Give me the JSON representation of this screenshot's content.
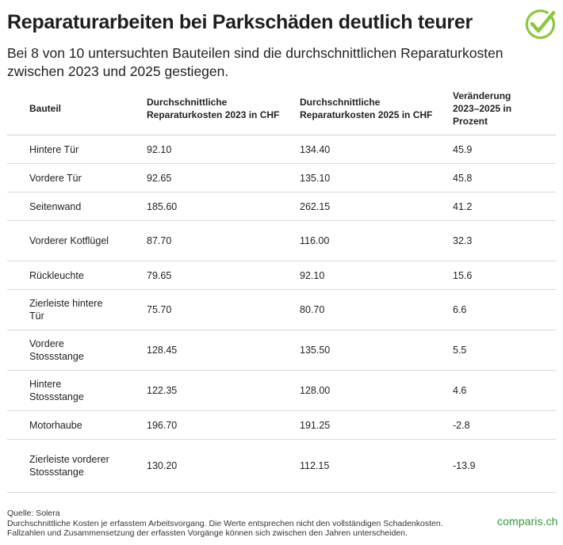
{
  "title": "Reparaturarbeiten bei Parkschäden deutlich teurer",
  "subtitle": "Bei 8 von 10 untersuchten Bauteilen sind die durchschnittlichen Reparaturkosten zwischen 2023 und 2025 gestiegen.",
  "colors": {
    "brand_green": "#2e9b3a",
    "check_green": "#8cc63f"
  },
  "logo": {
    "icon": "checkmark-circle-icon"
  },
  "table": {
    "headers": {
      "part": "Bauteil",
      "cost2023": "Durchschnittliche Reparaturkosten 2023 in CHF",
      "cost2025": "Durchschnittliche Reparaturkosten 2025 in CHF",
      "change": "Veränderung 2023–2025 in Prozent"
    },
    "rows": [
      {
        "part": "Hintere Tür",
        "cost2023": "92.10",
        "cost2025": "134.40",
        "change": "45.9"
      },
      {
        "part": "Vordere Tür",
        "cost2023": "92.65",
        "cost2025": "135.10",
        "change": "45.8"
      },
      {
        "part": "Seitenwand",
        "cost2023": "185.60",
        "cost2025": "262.15",
        "change": "41.2"
      },
      {
        "part": "Vorderer Kotflügel",
        "cost2023": "87.70",
        "cost2025": "116.00",
        "change": "32.3"
      },
      {
        "part": "Rückleuchte",
        "cost2023": "79.65",
        "cost2025": "92.10",
        "change": "15.6"
      },
      {
        "part": "Zierleiste hintere Tür",
        "cost2023": "75.70",
        "cost2025": "80.70",
        "change": "6.6"
      },
      {
        "part": "Vordere Stossstange",
        "cost2023": "128.45",
        "cost2025": "135.50",
        "change": "5.5"
      },
      {
        "part": "Hintere Stossstange",
        "cost2023": "122.35",
        "cost2025": "128.00",
        "change": "4.6"
      },
      {
        "part": "Motorhaube",
        "cost2023": "196.70",
        "cost2025": "191.25",
        "change": "-2.8"
      },
      {
        "part": "Zierleiste vorderer Stossstange",
        "cost2023": "130.20",
        "cost2025": "112.15",
        "change": "-13.9"
      }
    ]
  },
  "footer": {
    "source": "Quelle: Solera",
    "note": "Durchschnittliche Kosten je erfasstem Arbeitsvorgang. Die Werte entsprechen nicht den vollständigen Schadenkosten. Fallzahlen und Zusammensetzung der erfassten Vorgänge können sich zwischen den Jahren unterscheiden."
  },
  "brand": "comparis.ch"
}
